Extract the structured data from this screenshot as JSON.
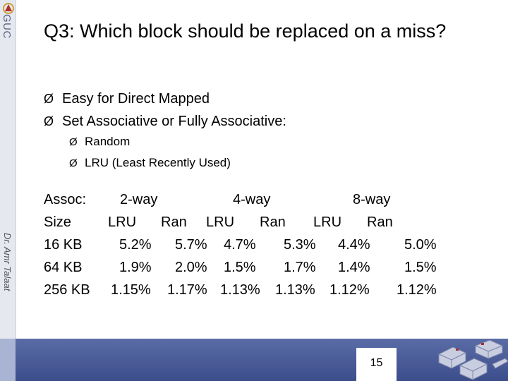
{
  "sidebar": {
    "logo_text": "GUC",
    "author": "Dr. Amr Talaat"
  },
  "slide": {
    "title": "Q3: Which block should be replaced on a miss?",
    "bullets": [
      "Easy for Direct Mapped",
      "Set Associative or Fully Associative:"
    ],
    "sub_bullets": [
      "Random",
      "LRU (Least Recently Used)"
    ],
    "table": {
      "assoc_label": "Assoc:",
      "size_label": "Size",
      "groups": [
        "2-way",
        "4-way",
        "8-way"
      ],
      "subheaders": [
        "LRU",
        "Ran",
        "LRU",
        "Ran",
        "LRU",
        "Ran"
      ],
      "rows": [
        {
          "size": "16 KB",
          "values": [
            "5.2%",
            "5.7%",
            "4.7%",
            "5.3%",
            "4.4%",
            "5.0%"
          ]
        },
        {
          "size": "64 KB",
          "values": [
            "1.9%",
            "2.0%",
            "1.5%",
            "1.7%",
            "1.4%",
            "1.5%"
          ]
        },
        {
          "size": "256 KB",
          "values": [
            "1.15%",
            "1.17%",
            "1.13%",
            "1.13%",
            "1.12%",
            "1.12%"
          ]
        }
      ]
    },
    "page_number": "15",
    "arrow_glyph": "Ø"
  },
  "colors": {
    "bottom_bar": "#4a5c9a",
    "sidebar": "#e6e8ef"
  }
}
